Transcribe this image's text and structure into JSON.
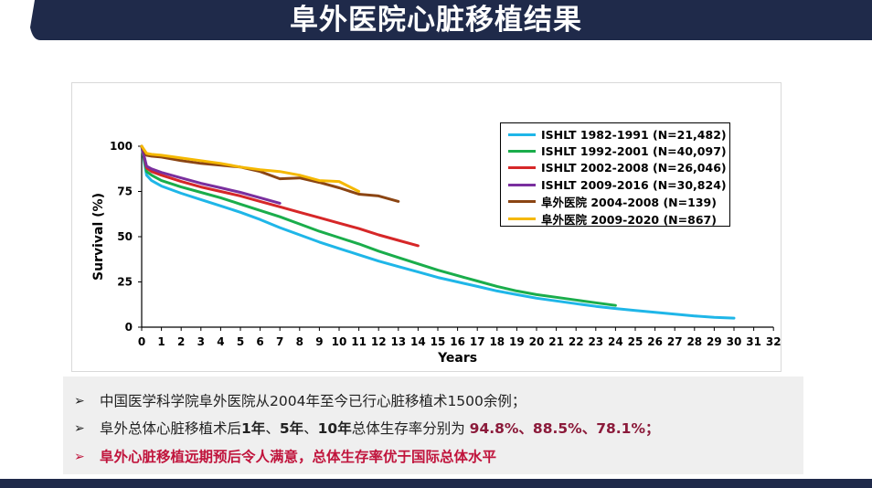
{
  "title": "阜外医院心脏移植结果",
  "colors": {
    "banner": "#1f2a4a",
    "highlight": "#8b1a3a",
    "alert": "#c0143c"
  },
  "chart_data": {
    "type": "line",
    "xlabel": "Years",
    "ylabel": "Survival  (%)",
    "xlim": [
      0,
      32
    ],
    "ylim": [
      0,
      100
    ],
    "x_ticks": [
      "0",
      "1",
      "2",
      "3",
      "4",
      "5",
      "6",
      "7",
      "8",
      "9",
      "10",
      "11",
      "12",
      "13",
      "14",
      "15",
      "16",
      "17",
      "18",
      "19",
      "20",
      "21",
      "22",
      "23",
      "24",
      "25",
      "26",
      "27",
      "28",
      "29",
      "30",
      "31",
      "32"
    ],
    "y_ticks": [
      "0",
      "25",
      "50",
      "75",
      "100"
    ],
    "legend_position": "top-right",
    "series": [
      {
        "name": "ISHLT 1982-1991 (N=21,482)",
        "color": "#1fb6e8",
        "x": [
          0,
          0.25,
          0.5,
          1,
          2,
          3,
          4,
          5,
          6,
          7,
          8,
          9,
          10,
          11,
          12,
          13,
          14,
          15,
          16,
          17,
          18,
          19,
          20,
          21,
          22,
          23,
          24,
          25,
          26,
          27,
          28,
          29,
          30
        ],
        "y": [
          100,
          84,
          81,
          78,
          74,
          70.5,
          67,
          63.5,
          59.5,
          55,
          51,
          47,
          43.5,
          40,
          36.5,
          33.5,
          30.5,
          27.5,
          25,
          22.5,
          20,
          18,
          16,
          14.5,
          13,
          11.5,
          10.3,
          9.2,
          8.2,
          7.2,
          6.2,
          5.4,
          5
        ]
      },
      {
        "name": "ISHLT 1992-2001 (N=40,097)",
        "color": "#1aad4b",
        "x": [
          0,
          0.25,
          0.5,
          1,
          2,
          3,
          4,
          5,
          6,
          7,
          8,
          9,
          10,
          11,
          12,
          13,
          14,
          15,
          16,
          17,
          18,
          19,
          20,
          21,
          22,
          23,
          24
        ],
        "y": [
          100,
          86,
          84,
          81,
          77.5,
          74.5,
          71.5,
          68,
          64.5,
          61,
          57,
          53,
          49.5,
          46,
          42,
          38.5,
          35,
          31.5,
          28.5,
          25.5,
          22.5,
          20,
          18,
          16.5,
          15,
          13.5,
          12
        ]
      },
      {
        "name": "ISHLT 2002-2008 (N=26,046)",
        "color": "#d62728",
        "x": [
          0,
          0.25,
          0.5,
          1,
          2,
          3,
          4,
          5,
          6,
          7,
          8,
          9,
          10,
          11,
          12,
          13,
          14
        ],
        "y": [
          100,
          88,
          86,
          84,
          80.5,
          77.5,
          75,
          72.5,
          69.5,
          66.5,
          63.5,
          60.5,
          57.5,
          54.5,
          51,
          48,
          45
        ]
      },
      {
        "name": "ISHLT 2009-2016 (N=30,824)",
        "color": "#7a2f9e",
        "x": [
          0,
          0.25,
          0.5,
          1,
          2,
          3,
          4,
          5,
          6,
          7
        ],
        "y": [
          100,
          89,
          87.5,
          85.5,
          82.5,
          79.5,
          77,
          74.5,
          71.5,
          68.5
        ]
      },
      {
        "name": "阜外医院 2004-2008 (N=139)",
        "color": "#8b4513",
        "x": [
          0,
          0.25,
          0.5,
          1,
          2,
          3,
          4,
          5,
          6,
          7,
          8,
          9,
          10,
          11,
          12,
          13
        ],
        "y": [
          100,
          95,
          94.5,
          94,
          92,
          90.5,
          89.5,
          88.5,
          86,
          82,
          82.5,
          80,
          77,
          73.5,
          72.5,
          69.5
        ]
      },
      {
        "name": "阜外医院 2009-2020 (N=867)",
        "color": "#f5b800",
        "x": [
          0,
          0.25,
          0.5,
          1,
          2,
          3,
          4,
          5,
          6,
          7,
          8,
          9,
          10,
          11
        ],
        "y": [
          100,
          96,
          95.5,
          95,
          93.5,
          92,
          90.5,
          88.5,
          87,
          86,
          84,
          81,
          80.5,
          75
        ]
      }
    ]
  },
  "notes": [
    {
      "arrow": "➢",
      "text": "中国医学科学院阜外医院从2004年至今已行心脏移植术1500余例；"
    },
    {
      "arrow": "➢",
      "parts": [
        {
          "t": "阜外总体心脏移植术后",
          "s": ""
        },
        {
          "t": "1年",
          "s": "bold"
        },
        {
          "t": "、",
          "s": ""
        },
        {
          "t": "5年",
          "s": "bold"
        },
        {
          "t": "、",
          "s": ""
        },
        {
          "t": "10年",
          "s": "bold"
        },
        {
          "t": "总体生存率分别为 ",
          "s": ""
        },
        {
          "t": "94.8%、88.5%、78.1%；",
          "s": "hl"
        }
      ]
    },
    {
      "arrow": "➢",
      "text": "阜外心脏移植远期预后令人满意，总体生存率优于国际总体水平"
    }
  ]
}
